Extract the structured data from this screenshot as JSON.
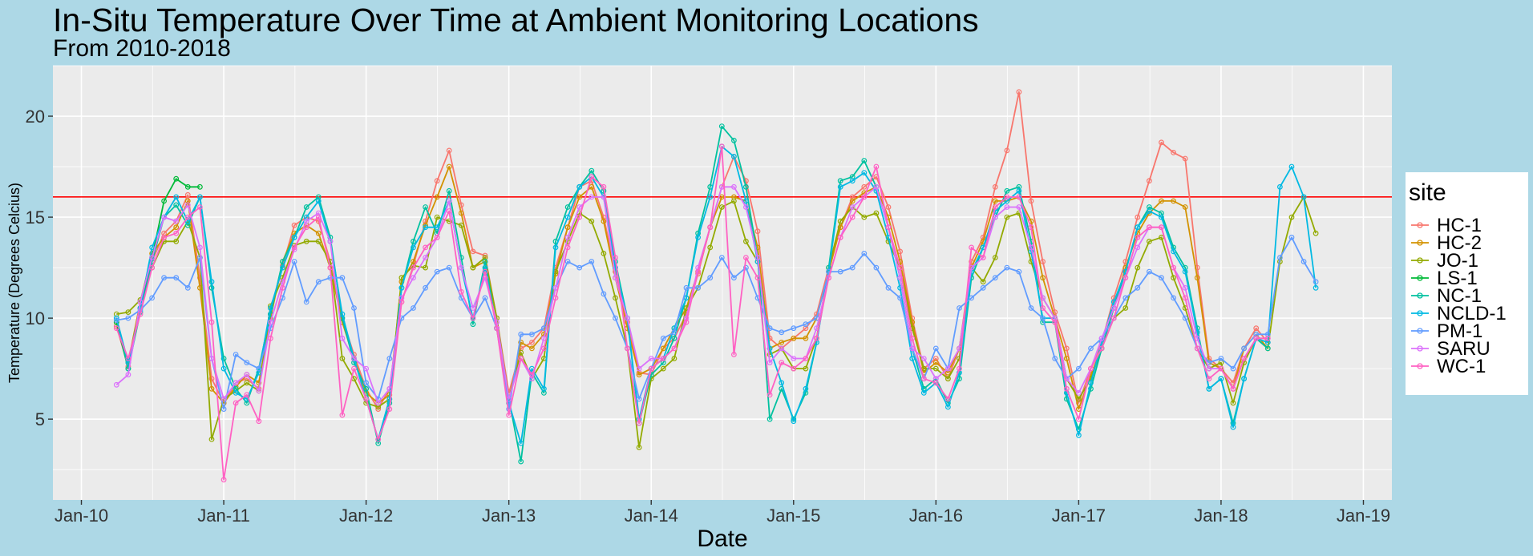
{
  "chart_data": {
    "type": "line",
    "title": "In-Situ Temperature Over Time at Ambient Monitoring Locations",
    "subtitle": "From 2010-2018",
    "xlabel": "Date",
    "ylabel": "Temperature (Degrees Celcius)",
    "x_tick_labels": [
      "Jan-10",
      "Jan-11",
      "Jan-12",
      "Jan-13",
      "Jan-14",
      "Jan-15",
      "Jan-16",
      "Jan-17",
      "Jan-18",
      "Jan-19"
    ],
    "y_ticks": [
      5,
      10,
      15,
      20
    ],
    "ylim": [
      1,
      22.5
    ],
    "xlim": [
      "2009-10-20",
      "2019-03-15"
    ],
    "grid": true,
    "reference_line": {
      "y": 16,
      "color": "#ff0000"
    },
    "legend": {
      "title": "site",
      "position": "right",
      "entries": [
        "HC-1",
        "HC-2",
        "JO-1",
        "LS-1",
        "NC-1",
        "NCLD-1",
        "PM-1",
        "SARU",
        "WC-1"
      ]
    },
    "dates": [
      "2010-04-01",
      "2010-05-01",
      "2010-06-01",
      "2010-07-01",
      "2010-08-01",
      "2010-09-01",
      "2010-10-01",
      "2010-11-01",
      "2010-12-01",
      "2011-01-01",
      "2011-02-01",
      "2011-03-01",
      "2011-04-01",
      "2011-05-01",
      "2011-06-01",
      "2011-07-01",
      "2011-08-01",
      "2011-09-01",
      "2011-10-01",
      "2011-11-01",
      "2011-12-01",
      "2012-01-01",
      "2012-02-01",
      "2012-03-01",
      "2012-04-01",
      "2012-05-01",
      "2012-06-01",
      "2012-07-01",
      "2012-08-01",
      "2012-09-01",
      "2012-10-01",
      "2012-11-01",
      "2012-12-01",
      "2013-01-01",
      "2013-02-01",
      "2013-03-01",
      "2013-04-01",
      "2013-05-01",
      "2013-06-01",
      "2013-07-01",
      "2013-08-01",
      "2013-09-01",
      "2013-10-01",
      "2013-11-01",
      "2013-12-01",
      "2014-01-01",
      "2014-02-01",
      "2014-03-01",
      "2014-04-01",
      "2014-05-01",
      "2014-06-01",
      "2014-07-01",
      "2014-08-01",
      "2014-09-01",
      "2014-10-01",
      "2014-11-01",
      "2014-12-01",
      "2015-01-01",
      "2015-02-01",
      "2015-03-01",
      "2015-04-01",
      "2015-05-01",
      "2015-06-01",
      "2015-07-01",
      "2015-08-01",
      "2015-09-01",
      "2015-10-01",
      "2015-11-01",
      "2015-12-01",
      "2016-01-01",
      "2016-02-01",
      "2016-03-01",
      "2016-04-01",
      "2016-05-01",
      "2016-06-01",
      "2016-07-01",
      "2016-08-01",
      "2016-09-01",
      "2016-10-01",
      "2016-11-01",
      "2016-12-01",
      "2017-01-01",
      "2017-02-01",
      "2017-03-01",
      "2017-04-01",
      "2017-05-01",
      "2017-06-01",
      "2017-07-01",
      "2017-08-01",
      "2017-09-01",
      "2017-10-01",
      "2017-11-01",
      "2017-12-01",
      "2018-01-01",
      "2018-02-01",
      "2018-03-01",
      "2018-04-01",
      "2018-05-01",
      "2018-06-01",
      "2018-07-01",
      "2018-08-01",
      "2018-09-01"
    ],
    "series": [
      {
        "name": "HC-1",
        "color": "#F8766D",
        "values": [
          9.6,
          7.6,
          10.5,
          12.8,
          14.2,
          14.8,
          16.1,
          12.0,
          7.0,
          5.8,
          6.8,
          7.0,
          6.5,
          10.2,
          12.6,
          14.6,
          15.0,
          14.8,
          12.8,
          10.0,
          8.2,
          6.5,
          5.5,
          6.5,
          10.8,
          12.6,
          14.8,
          16.8,
          18.3,
          15.6,
          13.3,
          13.1,
          10.0,
          6.3,
          8.5,
          8.8,
          9.5,
          12.5,
          14.5,
          16.5,
          16.8,
          15.0,
          12.3,
          9.8,
          7.3,
          7.2,
          8.5,
          9.0,
          10.2,
          12.2,
          14.5,
          16.5,
          18.0,
          16.8,
          14.3,
          9.0,
          8.5,
          9.0,
          9.5,
          10.2,
          12.5,
          14.5,
          16.0,
          16.5,
          17.0,
          15.5,
          13.3,
          10.0,
          7.5,
          8.0,
          7.0,
          8.5,
          12.8,
          14.0,
          16.5,
          18.3,
          21.2,
          15.8,
          12.8,
          10.3,
          8.5,
          5.8,
          7.5,
          8.8,
          11.0,
          12.8,
          15.0,
          16.8,
          18.7,
          18.2,
          17.9,
          12.5,
          8.0,
          7.5,
          6.8,
          8.5,
          9.5,
          8.8,
          null,
          null,
          null,
          null
        ]
      },
      {
        "name": "HC-2",
        "color": "#D39200",
        "values": [
          9.8,
          7.8,
          10.8,
          13.2,
          14.0,
          14.5,
          15.8,
          11.5,
          6.5,
          5.8,
          6.6,
          7.2,
          6.8,
          10.0,
          12.8,
          14.2,
          14.6,
          14.2,
          12.5,
          9.8,
          8.0,
          6.3,
          5.8,
          6.2,
          11.8,
          12.8,
          14.6,
          16.0,
          17.5,
          15.2,
          12.5,
          12.8,
          9.5,
          5.8,
          8.8,
          8.5,
          9.2,
          12.2,
          14.5,
          16.0,
          16.5,
          14.8,
          12.0,
          9.5,
          7.2,
          7.5,
          8.5,
          9.5,
          10.5,
          12.3,
          14.5,
          16.0,
          16.0,
          15.8,
          13.5,
          8.5,
          8.8,
          9.0,
          9.0,
          10.0,
          12.3,
          14.5,
          15.8,
          16.2,
          16.5,
          15.0,
          12.8,
          9.8,
          7.3,
          7.8,
          7.3,
          8.5,
          12.5,
          13.8,
          15.8,
          15.8,
          16.0,
          14.8,
          12.0,
          10.0,
          8.0,
          5.5,
          7.2,
          8.5,
          10.5,
          12.5,
          14.2,
          15.2,
          15.8,
          15.8,
          15.5,
          12.0,
          7.8,
          7.5,
          6.5,
          8.5,
          9.2,
          8.5,
          null,
          null,
          null,
          null
        ]
      },
      {
        "name": "JO-1",
        "color": "#93AA00",
        "values": [
          10.2,
          10.3,
          10.9,
          12.5,
          13.8,
          13.8,
          14.8,
          13.0,
          4.0,
          6.0,
          6.4,
          6.8,
          6.4,
          10.6,
          12.0,
          13.6,
          13.8,
          13.8,
          12.8,
          8.0,
          7.0,
          5.8,
          5.6,
          6.0,
          12.0,
          12.6,
          12.5,
          15.0,
          14.8,
          14.6,
          12.5,
          13.0,
          10.0,
          6.0,
          8.3,
          7.0,
          8.0,
          12.3,
          13.8,
          15.2,
          14.8,
          13.2,
          11.0,
          8.5,
          3.6,
          7.0,
          7.5,
          8.0,
          10.5,
          11.5,
          13.5,
          15.5,
          15.8,
          13.8,
          12.8,
          8.2,
          8.5,
          7.5,
          7.5,
          9.0,
          12.5,
          14.8,
          15.5,
          15.0,
          15.2,
          13.8,
          12.5,
          9.5,
          7.5,
          7.5,
          7.0,
          8.0,
          12.5,
          11.8,
          13.0,
          15.0,
          15.2,
          12.8,
          11.0,
          10.0,
          7.0,
          6.0,
          7.0,
          8.5,
          10.0,
          10.5,
          12.5,
          13.8,
          14.0,
          12.0,
          10.5,
          8.5,
          7.5,
          7.8,
          5.8,
          7.8,
          9.0,
          8.5,
          12.8,
          15.0,
          16.0,
          14.2
        ]
      },
      {
        "name": "LS-1",
        "color": "#00BA38",
        "values": [
          9.8,
          7.5,
          10.5,
          13.0,
          15.8,
          16.9,
          16.5,
          16.5,
          null,
          null,
          null,
          null,
          null,
          null,
          null,
          null,
          null,
          null,
          null,
          null,
          null,
          null,
          null,
          null,
          null,
          null,
          null,
          null,
          null,
          null,
          null,
          null,
          null,
          null,
          null,
          null,
          null,
          null,
          null,
          null,
          null,
          null,
          null,
          null,
          null,
          null,
          null,
          null,
          null,
          null,
          null,
          null,
          null,
          null,
          null,
          null,
          null,
          null,
          null,
          null,
          null,
          null,
          null,
          null,
          null,
          null,
          null,
          null,
          null,
          null,
          null,
          null,
          null,
          null,
          null,
          null,
          null,
          null,
          null,
          null,
          null,
          null,
          null,
          null,
          null,
          null,
          null,
          null,
          null,
          null,
          null,
          null,
          null,
          null,
          null,
          null,
          null,
          null,
          null,
          null,
          null,
          null
        ]
      },
      {
        "name": "NC-1",
        "color": "#00C19F",
        "values": [
          10.0,
          7.5,
          10.3,
          12.8,
          15.0,
          15.6,
          14.6,
          16.0,
          11.5,
          8.0,
          6.5,
          5.8,
          7.5,
          10.2,
          12.8,
          14.0,
          15.5,
          16.0,
          14.0,
          10.0,
          7.8,
          6.5,
          3.8,
          5.8,
          11.5,
          13.8,
          15.5,
          14.2,
          16.3,
          13.0,
          9.7,
          12.8,
          9.5,
          6.0,
          2.9,
          7.3,
          6.3,
          13.8,
          15.5,
          16.5,
          17.3,
          16.3,
          12.8,
          10.0,
          4.8,
          7.2,
          7.8,
          9.0,
          11.0,
          14.2,
          16.5,
          19.5,
          18.8,
          16.5,
          13.0,
          5.0,
          6.5,
          5.0,
          6.3,
          8.8,
          12.5,
          16.8,
          17.0,
          17.8,
          16.5,
          14.5,
          12.0,
          8.5,
          6.5,
          7.0,
          5.8,
          7.0,
          12.0,
          13.5,
          15.0,
          16.3,
          16.5,
          13.8,
          9.8,
          9.8,
          6.0,
          4.5,
          6.5,
          8.5,
          10.5,
          12.3,
          14.5,
          15.5,
          15.2,
          13.5,
          12.5,
          9.5,
          6.5,
          7.0,
          4.8,
          7.0,
          9.0,
          8.5,
          null,
          null,
          null,
          null
        ]
      },
      {
        "name": "NCLD-1",
        "color": "#00B9E3",
        "values": [
          10.0,
          7.8,
          10.5,
          13.5,
          15.0,
          16.0,
          14.8,
          16.0,
          11.8,
          7.5,
          6.3,
          6.0,
          7.3,
          10.5,
          12.5,
          14.0,
          15.0,
          15.8,
          13.8,
          10.2,
          8.0,
          6.0,
          4.0,
          6.0,
          11.5,
          13.5,
          14.5,
          14.5,
          15.8,
          12.5,
          10.0,
          12.5,
          9.5,
          5.8,
          3.8,
          7.5,
          6.5,
          13.5,
          15.0,
          16.5,
          17.0,
          16.0,
          12.5,
          10.0,
          5.0,
          7.5,
          8.0,
          9.5,
          11.0,
          14.0,
          16.0,
          18.5,
          18.0,
          15.8,
          12.8,
          8.5,
          6.8,
          4.9,
          6.5,
          8.8,
          12.3,
          16.5,
          16.8,
          17.2,
          16.3,
          14.0,
          11.5,
          8.0,
          6.3,
          6.8,
          5.6,
          7.3,
          12.3,
          13.5,
          15.3,
          15.8,
          16.3,
          13.3,
          10.0,
          10.0,
          6.3,
          4.2,
          6.8,
          8.8,
          10.8,
          12.3,
          14.5,
          15.3,
          15.0,
          13.3,
          12.3,
          9.3,
          6.5,
          7.0,
          4.6,
          7.0,
          9.0,
          8.8,
          16.5,
          17.5,
          16.0,
          11.5
        ]
      },
      {
        "name": "PM-1",
        "color": "#619CFF",
        "values": [
          9.9,
          10.0,
          10.4,
          11.0,
          12.0,
          12.0,
          11.5,
          13.0,
          8.0,
          5.5,
          8.2,
          7.8,
          7.5,
          9.5,
          11.0,
          12.8,
          10.8,
          11.8,
          12.0,
          12.0,
          10.5,
          6.8,
          6.0,
          8.0,
          10.0,
          10.5,
          11.5,
          12.3,
          12.5,
          11.0,
          10.0,
          11.0,
          9.5,
          5.5,
          9.2,
          9.2,
          9.5,
          11.5,
          12.8,
          12.5,
          12.8,
          11.2,
          10.0,
          8.5,
          6.0,
          7.5,
          9.0,
          9.3,
          11.5,
          11.5,
          12.0,
          13.0,
          12.0,
          12.5,
          11.0,
          9.5,
          9.3,
          9.5,
          9.7,
          10.0,
          12.3,
          12.3,
          12.5,
          13.2,
          12.5,
          11.5,
          11.0,
          8.5,
          7.0,
          8.5,
          7.5,
          10.5,
          11.0,
          11.5,
          12.0,
          12.5,
          12.3,
          10.5,
          10.0,
          8.0,
          7.0,
          7.5,
          8.5,
          9.0,
          10.0,
          11.0,
          11.5,
          12.3,
          12.0,
          11.0,
          10.0,
          8.5,
          7.8,
          8.0,
          7.5,
          8.5,
          9.2,
          9.2,
          13.0,
          14.0,
          12.8,
          11.8
        ]
      },
      {
        "name": "SARU",
        "color": "#DB72FB",
        "values": [
          6.7,
          7.2,
          10.8,
          13.0,
          15.0,
          14.8,
          15.6,
          13.5,
          8.0,
          6.0,
          6.8,
          7.2,
          6.4,
          9.8,
          11.8,
          13.4,
          14.8,
          15.2,
          13.8,
          9.0,
          8.0,
          7.5,
          5.8,
          6.5,
          11.0,
          12.0,
          13.0,
          14.0,
          15.8,
          12.5,
          10.5,
          12.0,
          9.8,
          6.0,
          8.0,
          7.0,
          9.0,
          11.5,
          14.0,
          15.5,
          16.0,
          16.0,
          12.0,
          10.0,
          7.5,
          8.0,
          8.0,
          8.5,
          10.0,
          12.5,
          14.5,
          16.5,
          16.5,
          15.5,
          13.0,
          7.8,
          8.5,
          8.0,
          8.0,
          9.5,
          12.0,
          14.0,
          15.5,
          16.0,
          16.5,
          14.5,
          12.0,
          8.5,
          8.0,
          7.0,
          7.5,
          8.5,
          12.5,
          13.0,
          15.0,
          15.5,
          15.5,
          13.5,
          11.0,
          10.0,
          7.0,
          6.3,
          7.5,
          9.0,
          10.5,
          12.0,
          13.5,
          14.5,
          14.5,
          12.5,
          11.5,
          9.0,
          7.5,
          7.5,
          6.5,
          8.0,
          9.0,
          9.0,
          null,
          null,
          null,
          null
        ]
      },
      {
        "name": "WC-1",
        "color": "#FF61C3",
        "values": [
          9.5,
          8.0,
          10.2,
          12.5,
          14.0,
          14.2,
          15.0,
          15.5,
          9.8,
          2.0,
          5.8,
          6.2,
          4.9,
          9.0,
          11.5,
          13.5,
          14.5,
          15.0,
          12.5,
          5.2,
          7.5,
          6.0,
          4.0,
          5.5,
          10.8,
          12.5,
          13.5,
          14.0,
          15.3,
          11.3,
          10.0,
          12.3,
          9.5,
          5.2,
          8.0,
          7.2,
          8.5,
          11.0,
          13.5,
          15.0,
          17.0,
          16.5,
          13.0,
          8.5,
          4.8,
          7.5,
          8.0,
          8.5,
          9.8,
          12.3,
          14.5,
          18.5,
          8.2,
          13.0,
          12.0,
          6.2,
          7.8,
          7.5,
          8.0,
          9.0,
          12.0,
          14.0,
          15.0,
          16.0,
          17.5,
          14.5,
          12.5,
          9.0,
          7.0,
          6.8,
          6.0,
          7.5,
          13.5,
          13.0,
          15.5,
          16.0,
          16.0,
          14.5,
          10.5,
          9.8,
          6.5,
          5.0,
          7.5,
          8.5,
          10.0,
          12.0,
          14.0,
          14.5,
          14.5,
          12.5,
          11.0,
          8.5,
          7.0,
          7.5,
          6.5,
          8.0,
          9.0,
          9.0,
          null,
          null,
          null,
          null
        ]
      }
    ]
  }
}
